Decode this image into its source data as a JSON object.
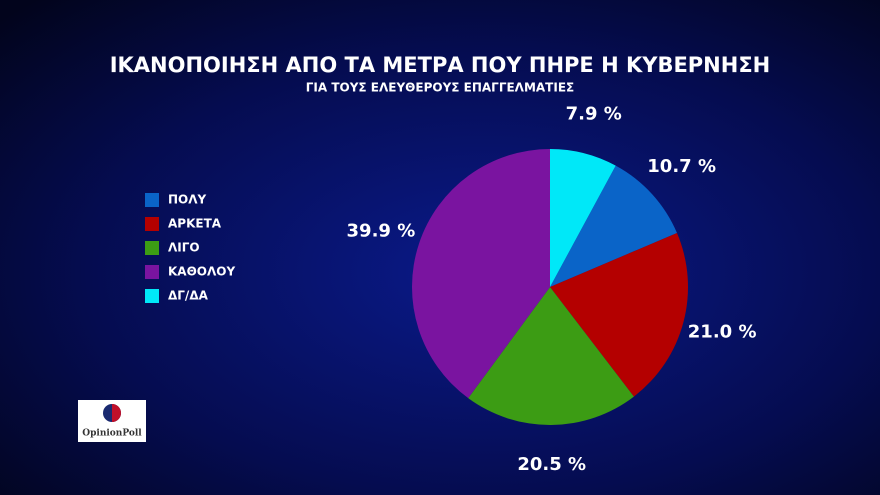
{
  "chart_data": {
    "type": "pie",
    "title": "ΙΚΑΝΟΠΟΙΗΣΗ ΑΠΟ ΤΑ ΜΕΤΡΑ ΠΟΥ ΠΗΡΕ Η ΚΥΒΕΡΝΗΣΗ",
    "subtitle": "ΓΙΑ ΤΟΥΣ ΕΛΕΥΘΕΡΟΥΣ ΕΠΑΓΓΕΛΜΑΤΙΕΣ",
    "categories": [
      "ΠΟΛΥ",
      "ΑΡΚΕΤΑ",
      "ΛΙΓΟ",
      "ΚΑΘΟΛΟΥ",
      "ΔΓ/ΔΑ"
    ],
    "values": [
      10.7,
      21.0,
      20.5,
      39.9,
      7.9
    ],
    "value_labels": [
      "10.7 %",
      "21.0 %",
      "20.5 %",
      "39.9 %",
      "7.9 %"
    ],
    "colors": [
      "#0a64c8",
      "#b40000",
      "#3c9c14",
      "#7a14a0",
      "#00e8f8"
    ],
    "legend": "left"
  },
  "logo": {
    "text": "OpinionPoll"
  }
}
